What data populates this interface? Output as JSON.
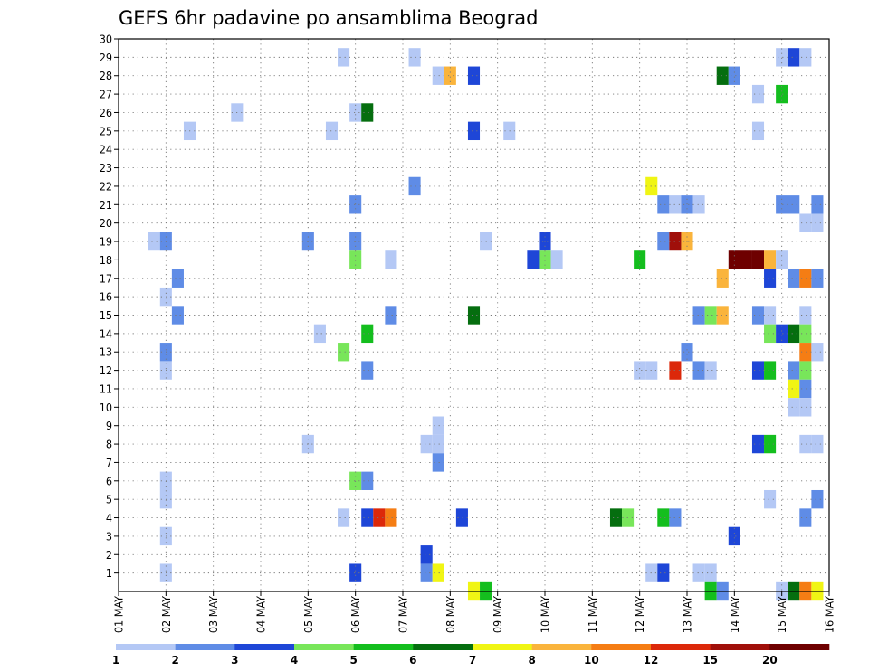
{
  "chart_data": {
    "type": "heatmap",
    "title": "GEFS 6hr padavine po ansamblima Beograd",
    "xlabel": "",
    "ylabel": "",
    "x_tick_labels": [
      "01 MAY",
      "02 MAY",
      "03 MAY",
      "04 MAY",
      "05 MAY",
      "06 MAY",
      "07 MAY",
      "08 MAY",
      "09 MAY",
      "10 MAY",
      "11 MAY",
      "12 MAY",
      "13 MAY",
      "14 MAY",
      "15 MAY",
      "16 MAY"
    ],
    "y_tick_labels": [
      "1",
      "2",
      "3",
      "4",
      "5",
      "6",
      "7",
      "8",
      "9",
      "10",
      "11",
      "12",
      "13",
      "14",
      "15",
      "16",
      "17",
      "18",
      "19",
      "20",
      "21",
      "22",
      "23",
      "24",
      "25",
      "26",
      "27",
      "28",
      "29",
      "30"
    ],
    "xlim_days": [
      1,
      16
    ],
    "ylim_members": [
      0,
      30
    ],
    "grid": true,
    "colorbar": {
      "placement": "bottom",
      "labels": [
        "1",
        "2",
        "3",
        "4",
        "5",
        "6",
        "7",
        "8",
        "10",
        "12",
        "15",
        "20"
      ],
      "colors": [
        "#b4c8f5",
        "#5f8ce6",
        "#1e46d7",
        "#78e65a",
        "#14be1e",
        "#056e0f",
        "#f0f514",
        "#fab43c",
        "#f57d14",
        "#dc280a",
        "#a00f0a",
        "#6e0000"
      ]
    },
    "precip_cells": [
      {
        "member": 29,
        "day": 5.75,
        "level": 1
      },
      {
        "member": 29,
        "day": 7.25,
        "level": 1
      },
      {
        "member": 29,
        "day": 15.0,
        "level": 1
      },
      {
        "member": 29,
        "day": 15.25,
        "level": 3
      },
      {
        "member": 29,
        "day": 15.5,
        "level": 1
      },
      {
        "member": 28,
        "day": 7.75,
        "level": 1
      },
      {
        "member": 28,
        "day": 8.0,
        "level": 8
      },
      {
        "member": 28,
        "day": 8.5,
        "level": 3
      },
      {
        "member": 28,
        "day": 13.75,
        "level": 6
      },
      {
        "member": 28,
        "day": 14.0,
        "level": 2
      },
      {
        "member": 27,
        "day": 14.5,
        "level": 1
      },
      {
        "member": 27,
        "day": 15.0,
        "level": 5
      },
      {
        "member": 26,
        "day": 3.5,
        "level": 1
      },
      {
        "member": 26,
        "day": 6.0,
        "level": 1
      },
      {
        "member": 26,
        "day": 6.25,
        "level": 6
      },
      {
        "member": 25,
        "day": 2.5,
        "level": 1
      },
      {
        "member": 25,
        "day": 5.5,
        "level": 1
      },
      {
        "member": 25,
        "day": 8.5,
        "level": 3
      },
      {
        "member": 25,
        "day": 9.25,
        "level": 1
      },
      {
        "member": 25,
        "day": 14.5,
        "level": 1
      },
      {
        "member": 22,
        "day": 7.25,
        "level": 2
      },
      {
        "member": 22,
        "day": 12.25,
        "level": 7
      },
      {
        "member": 21,
        "day": 6.0,
        "level": 2
      },
      {
        "member": 21,
        "day": 12.5,
        "level": 2
      },
      {
        "member": 21,
        "day": 12.75,
        "level": 1
      },
      {
        "member": 21,
        "day": 13.0,
        "level": 2
      },
      {
        "member": 21,
        "day": 13.25,
        "level": 1
      },
      {
        "member": 21,
        "day": 15.0,
        "level": 2
      },
      {
        "member": 21,
        "day": 15.25,
        "level": 2
      },
      {
        "member": 21,
        "day": 15.75,
        "level": 2
      },
      {
        "member": 20,
        "day": 15.5,
        "level": 1
      },
      {
        "member": 20,
        "day": 15.75,
        "level": 1
      },
      {
        "member": 19,
        "day": 1.75,
        "level": 1
      },
      {
        "member": 19,
        "day": 2.0,
        "level": 2
      },
      {
        "member": 19,
        "day": 5.0,
        "level": 2
      },
      {
        "member": 19,
        "day": 6.0,
        "level": 2
      },
      {
        "member": 19,
        "day": 8.75,
        "level": 1
      },
      {
        "member": 19,
        "day": 10.0,
        "level": 3
      },
      {
        "member": 19,
        "day": 12.5,
        "level": 2
      },
      {
        "member": 19,
        "day": 12.75,
        "level": 11
      },
      {
        "member": 19,
        "day": 13.0,
        "level": 8
      },
      {
        "member": 18,
        "day": 6.0,
        "level": 4
      },
      {
        "member": 18,
        "day": 6.75,
        "level": 1
      },
      {
        "member": 18,
        "day": 9.75,
        "level": 3
      },
      {
        "member": 18,
        "day": 10.0,
        "level": 4
      },
      {
        "member": 18,
        "day": 10.25,
        "level": 1
      },
      {
        "member": 18,
        "day": 12.0,
        "level": 5
      },
      {
        "member": 18,
        "day": 14.0,
        "level": 12
      },
      {
        "member": 18,
        "day": 14.25,
        "level": 12
      },
      {
        "member": 18,
        "day": 14.5,
        "level": 12
      },
      {
        "member": 18,
        "day": 14.75,
        "level": 8
      },
      {
        "member": 18,
        "day": 15.0,
        "level": 1
      },
      {
        "member": 17,
        "day": 2.25,
        "level": 2
      },
      {
        "member": 17,
        "day": 13.75,
        "level": 8
      },
      {
        "member": 17,
        "day": 14.75,
        "level": 3
      },
      {
        "member": 17,
        "day": 15.25,
        "level": 2
      },
      {
        "member": 17,
        "day": 15.5,
        "level": 9
      },
      {
        "member": 17,
        "day": 15.75,
        "level": 2
      },
      {
        "member": 16,
        "day": 2.0,
        "level": 1
      },
      {
        "member": 15,
        "day": 2.25,
        "level": 2
      },
      {
        "member": 15,
        "day": 6.75,
        "level": 2
      },
      {
        "member": 15,
        "day": 8.5,
        "level": 6
      },
      {
        "member": 15,
        "day": 13.25,
        "level": 2
      },
      {
        "member": 15,
        "day": 13.5,
        "level": 4
      },
      {
        "member": 15,
        "day": 13.75,
        "level": 8
      },
      {
        "member": 15,
        "day": 14.5,
        "level": 2
      },
      {
        "member": 15,
        "day": 14.75,
        "level": 1
      },
      {
        "member": 15,
        "day": 15.5,
        "level": 1
      },
      {
        "member": 14,
        "day": 5.25,
        "level": 1
      },
      {
        "member": 14,
        "day": 6.25,
        "level": 5
      },
      {
        "member": 14,
        "day": 14.75,
        "level": 4
      },
      {
        "member": 14,
        "day": 15.0,
        "level": 3
      },
      {
        "member": 14,
        "day": 15.25,
        "level": 6
      },
      {
        "member": 14,
        "day": 15.5,
        "level": 4
      },
      {
        "member": 13,
        "day": 2.0,
        "level": 2
      },
      {
        "member": 13,
        "day": 5.75,
        "level": 4
      },
      {
        "member": 13,
        "day": 13.0,
        "level": 2
      },
      {
        "member": 13,
        "day": 15.5,
        "level": 9
      },
      {
        "member": 13,
        "day": 15.75,
        "level": 1
      },
      {
        "member": 12,
        "day": 2.0,
        "level": 1
      },
      {
        "member": 12,
        "day": 6.25,
        "level": 2
      },
      {
        "member": 12,
        "day": 12.0,
        "level": 1
      },
      {
        "member": 12,
        "day": 12.25,
        "level": 1
      },
      {
        "member": 12,
        "day": 12.75,
        "level": 10
      },
      {
        "member": 12,
        "day": 13.25,
        "level": 2
      },
      {
        "member": 12,
        "day": 13.5,
        "level": 1
      },
      {
        "member": 12,
        "day": 14.5,
        "level": 3
      },
      {
        "member": 12,
        "day": 14.75,
        "level": 5
      },
      {
        "member": 12,
        "day": 15.25,
        "level": 2
      },
      {
        "member": 12,
        "day": 15.5,
        "level": 4
      },
      {
        "member": 11,
        "day": 15.25,
        "level": 7
      },
      {
        "member": 11,
        "day": 15.5,
        "level": 2
      },
      {
        "member": 10,
        "day": 15.25,
        "level": 1
      },
      {
        "member": 10,
        "day": 15.5,
        "level": 1
      },
      {
        "member": 9,
        "day": 7.75,
        "level": 1
      },
      {
        "member": 8,
        "day": 5.0,
        "level": 1
      },
      {
        "member": 8,
        "day": 7.5,
        "level": 1
      },
      {
        "member": 8,
        "day": 7.75,
        "level": 1
      },
      {
        "member": 8,
        "day": 14.5,
        "level": 3
      },
      {
        "member": 8,
        "day": 14.75,
        "level": 5
      },
      {
        "member": 8,
        "day": 15.5,
        "level": 1
      },
      {
        "member": 8,
        "day": 15.75,
        "level": 1
      },
      {
        "member": 7,
        "day": 7.75,
        "level": 2
      },
      {
        "member": 6,
        "day": 2.0,
        "level": 1
      },
      {
        "member": 6,
        "day": 6.0,
        "level": 4
      },
      {
        "member": 6,
        "day": 6.25,
        "level": 2
      },
      {
        "member": 5,
        "day": 2.0,
        "level": 1
      },
      {
        "member": 5,
        "day": 14.75,
        "level": 1
      },
      {
        "member": 5,
        "day": 15.75,
        "level": 2
      },
      {
        "member": 4,
        "day": 5.75,
        "level": 1
      },
      {
        "member": 4,
        "day": 6.25,
        "level": 3
      },
      {
        "member": 4,
        "day": 6.5,
        "level": 10
      },
      {
        "member": 4,
        "day": 6.75,
        "level": 9
      },
      {
        "member": 4,
        "day": 8.25,
        "level": 3
      },
      {
        "member": 4,
        "day": 11.5,
        "level": 6
      },
      {
        "member": 4,
        "day": 11.75,
        "level": 4
      },
      {
        "member": 4,
        "day": 12.5,
        "level": 5
      },
      {
        "member": 4,
        "day": 12.75,
        "level": 2
      },
      {
        "member": 4,
        "day": 15.5,
        "level": 2
      },
      {
        "member": 3,
        "day": 2.0,
        "level": 1
      },
      {
        "member": 3,
        "day": 14.0,
        "level": 3
      },
      {
        "member": 2,
        "day": 7.5,
        "level": 3
      },
      {
        "member": 1,
        "day": 2.0,
        "level": 1
      },
      {
        "member": 1,
        "day": 6.0,
        "level": 3
      },
      {
        "member": 1,
        "day": 7.5,
        "level": 2
      },
      {
        "member": 1,
        "day": 7.75,
        "level": 7
      },
      {
        "member": 1,
        "day": 12.25,
        "level": 1
      },
      {
        "member": 1,
        "day": 12.5,
        "level": 3
      },
      {
        "member": 1,
        "day": 13.25,
        "level": 1
      },
      {
        "member": 1,
        "day": 13.5,
        "level": 1
      },
      {
        "member": 0,
        "day": 8.5,
        "level": 7
      },
      {
        "member": 0,
        "day": 8.75,
        "level": 5
      },
      {
        "member": 0,
        "day": 13.5,
        "level": 5
      },
      {
        "member": 0,
        "day": 13.75,
        "level": 2
      },
      {
        "member": 0,
        "day": 15.0,
        "level": 1
      },
      {
        "member": 0,
        "day": 15.25,
        "level": 6
      },
      {
        "member": 0,
        "day": 15.5,
        "level": 9
      },
      {
        "member": 0,
        "day": 15.75,
        "level": 7
      }
    ]
  }
}
